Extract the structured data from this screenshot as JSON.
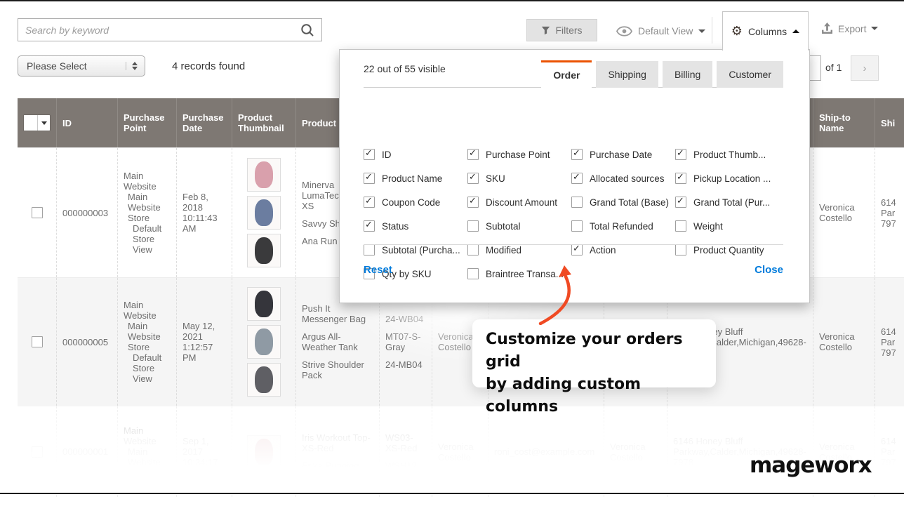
{
  "toolbar": {
    "search_placeholder": "Search by keyword",
    "filters_label": "Filters",
    "view_label": "Default View",
    "columns_label": "Columns",
    "export_label": "Export"
  },
  "actions_row": {
    "select_value": "Please Select",
    "records_text": "4 records found",
    "pagination_of": "of 1",
    "next_glyph": "›"
  },
  "columns_panel": {
    "visible_summary": "22 out of 55 visible",
    "tabs": [
      {
        "label": "Order",
        "active": true
      },
      {
        "label": "Shipping",
        "active": false
      },
      {
        "label": "Billing",
        "active": false
      },
      {
        "label": "Customer",
        "active": false
      }
    ],
    "checkboxes": [
      {
        "label": "ID",
        "checked": true
      },
      {
        "label": "Purchase Point",
        "checked": true
      },
      {
        "label": "Purchase Date",
        "checked": true
      },
      {
        "label": "Product Thumb...",
        "checked": true
      },
      {
        "label": "Product Name",
        "checked": true
      },
      {
        "label": "SKU",
        "checked": true
      },
      {
        "label": "Allocated sources",
        "checked": true
      },
      {
        "label": "Pickup Location ...",
        "checked": true
      },
      {
        "label": "Coupon Code",
        "checked": true
      },
      {
        "label": "Discount Amount",
        "checked": true
      },
      {
        "label": "Grand Total (Base)",
        "checked": false
      },
      {
        "label": "Grand Total (Pur...",
        "checked": true
      },
      {
        "label": "Status",
        "checked": true
      },
      {
        "label": "Subtotal",
        "checked": false
      },
      {
        "label": "Total Refunded",
        "checked": false
      },
      {
        "label": "Weight",
        "checked": false
      },
      {
        "label": "Subtotal (Purcha...",
        "checked": false
      },
      {
        "label": "Modified",
        "checked": false
      },
      {
        "label": "Action",
        "checked": true
      },
      {
        "label": "Product Quantity",
        "checked": false
      },
      {
        "label": "Qty by SKU",
        "checked": false
      },
      {
        "label": "Braintree Transa...",
        "checked": false
      }
    ],
    "reset_label": "Reset",
    "close_label": "Close"
  },
  "table": {
    "headers": {
      "id": "ID",
      "purchase_point": "Purchase Point",
      "purchase_date": "Purchase Date",
      "product_thumbnail": "Product Thumbnail",
      "product_name": "Product",
      "ship_to_name": "Ship-to Name",
      "shipping_address": "Shi"
    },
    "rows": [
      {
        "id": "000000003",
        "pp1": "Main Website",
        "pp2": "Main Website Store",
        "pp3": "Default Store View",
        "date": "Feb 8, 2018 10:11:43 AM",
        "thumbs": [
          "#d9a0ac",
          "#6b7da0",
          "#3a3a3c"
        ],
        "products": [
          "Minerva LumaTec V-Tee-XS",
          "Savvy Sh Tote",
          "Ana Run Short"
        ],
        "skus": [],
        "customer": "",
        "email": "",
        "customer_name": "",
        "address": "",
        "ship_to": "Veronica Costello",
        "ship_addr": "614 Par 797"
      },
      {
        "id": "000000005",
        "pp1": "Main Website",
        "pp2": "Main Website Store",
        "pp3": "Default Store View",
        "date": "May 12, 2021 1:12:57 PM",
        "thumbs": [
          "#35353b",
          "#8f9aa4",
          "#5f5f64"
        ],
        "products": [
          "Push It Messenger Bag",
          "Argus All-Weather Tank",
          "Strive Shoulder Pack"
        ],
        "skus": [
          "24-WB04",
          "MT07-S-Gray",
          "24-MB04"
        ],
        "customer": "Veronica Costello",
        "email": "",
        "customer_name": "",
        "address": "6146 Honey Bluff Parkway,Calder,Michigan,49628-7978",
        "ship_to": "Veronica Costello",
        "ship_addr": "614 Par 797"
      },
      {
        "id": "000000001",
        "pp1": "Main Website",
        "pp2": "Main Website Store",
        "pp3": "",
        "date": "Sep 1, 2017 10:34:17",
        "thumbs": [
          "#c0606a"
        ],
        "products": [
          "Iris Workout Top-XS-Red",
          "Erika Running"
        ],
        "skus": [
          "WS03-XS-Red",
          "WSH12"
        ],
        "customer": "Veronica Costello",
        "email": "roni_cost@example.com",
        "customer_name": "Veronica Costello",
        "address": "6146 Honey Bluff Parkway,Calder,Michigan,49628-7978",
        "ship_to": "Veronica Costello",
        "ship_addr": "614 Par 797"
      }
    ]
  },
  "callout": {
    "line1": "Customize your orders grid",
    "line2": "by adding custom columns"
  },
  "logo_text": "mageworx",
  "colors": {
    "accent_orange": "#eb5202",
    "arrow_orange": "#f04a23",
    "link_blue": "#007bdb",
    "header_bg": "#7e7873"
  }
}
